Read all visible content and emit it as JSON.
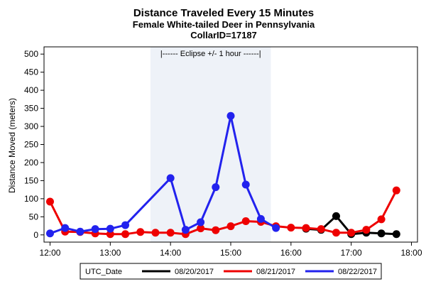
{
  "chart_data": {
    "type": "line",
    "title": "Distance Traveled Every 15 Minutes",
    "subtitle": "Female White-tailed Deer in Pennsylvania",
    "subtitle2": "CollarID=17187",
    "xlabel": "",
    "ylabel": "Distance Moved (meters)",
    "xlim": [
      "11:54",
      "18:06"
    ],
    "ylim": [
      -20,
      520
    ],
    "x_ticks": [
      "12:00",
      "13:00",
      "14:00",
      "15:00",
      "16:00",
      "17:00",
      "18:00"
    ],
    "y_ticks": [
      0,
      50,
      100,
      150,
      200,
      250,
      300,
      350,
      400,
      450,
      500
    ],
    "grid": false,
    "annotation": {
      "text": "|------  Eclipse +/- 1 hour  ------|",
      "x_start": "13:40",
      "x_end": "15:40",
      "shade_color": "#eef2f8"
    },
    "legend": {
      "title": "UTC_Date",
      "position": "bottom"
    },
    "series": [
      {
        "name": "08/20/2017",
        "color": "#000000",
        "points": [
          {
            "x": "16:15",
            "y": 17
          },
          {
            "x": "16:30",
            "y": 14
          },
          {
            "x": "16:45",
            "y": 52
          },
          {
            "x": "17:00",
            "y": 2
          },
          {
            "x": "17:15",
            "y": 6
          },
          {
            "x": "17:30",
            "y": 4
          },
          {
            "x": "17:45",
            "y": 2
          }
        ]
      },
      {
        "name": "08/21/2017",
        "color": "#ee0000",
        "points": [
          {
            "x": "12:00",
            "y": 92
          },
          {
            "x": "12:15",
            "y": 9
          },
          {
            "x": "12:30",
            "y": 8
          },
          {
            "x": "12:45",
            "y": 4
          },
          {
            "x": "13:00",
            "y": 2
          },
          {
            "x": "13:15",
            "y": 2
          },
          {
            "x": "13:30",
            "y": 8
          },
          {
            "x": "13:45",
            "y": 6
          },
          {
            "x": "14:00",
            "y": 6
          },
          {
            "x": "14:15",
            "y": 2
          },
          {
            "x": "14:30",
            "y": 18
          },
          {
            "x": "14:45",
            "y": 13
          },
          {
            "x": "15:00",
            "y": 24
          },
          {
            "x": "15:15",
            "y": 38
          },
          {
            "x": "15:30",
            "y": 36
          },
          {
            "x": "15:45",
            "y": 24
          },
          {
            "x": "16:00",
            "y": 20
          },
          {
            "x": "16:15",
            "y": 19
          },
          {
            "x": "16:30",
            "y": 16
          },
          {
            "x": "16:45",
            "y": 6
          },
          {
            "x": "17:00",
            "y": 6
          },
          {
            "x": "17:15",
            "y": 14
          },
          {
            "x": "17:30",
            "y": 43
          },
          {
            "x": "17:45",
            "y": 123
          }
        ]
      },
      {
        "name": "08/22/2017",
        "color": "#2222ee",
        "points": [
          {
            "x": "12:00",
            "y": 4
          },
          {
            "x": "12:15",
            "y": 19
          },
          {
            "x": "12:30",
            "y": 9
          },
          {
            "x": "12:45",
            "y": 16
          },
          {
            "x": "13:00",
            "y": 17
          },
          {
            "x": "13:15",
            "y": 27
          },
          {
            "x": "14:00",
            "y": 157
          },
          {
            "x": "14:15",
            "y": 14
          },
          {
            "x": "14:30",
            "y": 35
          },
          {
            "x": "14:45",
            "y": 132
          },
          {
            "x": "15:00",
            "y": 329
          },
          {
            "x": "15:15",
            "y": 139
          },
          {
            "x": "15:30",
            "y": 44
          },
          {
            "x": "15:45",
            "y": 19
          }
        ]
      }
    ]
  }
}
